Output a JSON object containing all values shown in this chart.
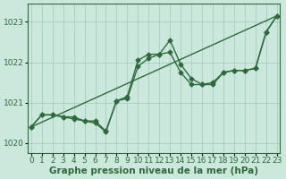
{
  "xlabel": "Graphe pression niveau de la mer (hPa)",
  "ylabel": "",
  "background_color": "#cce8dc",
  "plot_bg_color": "#cce8dc",
  "grid_color": "#99ccbb",
  "line_color": "#2d6b3c",
  "x_ticks": [
    0,
    1,
    2,
    3,
    4,
    5,
    6,
    7,
    8,
    9,
    10,
    11,
    12,
    13,
    14,
    15,
    16,
    17,
    18,
    19,
    20,
    21,
    22,
    23
  ],
  "y_ticks": [
    1020,
    1021,
    1022,
    1023
  ],
  "ylim": [
    1019.75,
    1023.45
  ],
  "xlim": [
    -0.3,
    23.3
  ],
  "line1_x": [
    0,
    23
  ],
  "line1_y": [
    1020.4,
    1023.15
  ],
  "line2": [
    1020.4,
    1020.7,
    1020.7,
    1020.65,
    1020.65,
    1020.55,
    1020.55,
    1020.3,
    1021.05,
    1021.15,
    1022.05,
    1022.2,
    1022.2,
    1022.55,
    1021.95,
    1021.6,
    1021.45,
    1021.45,
    1021.75,
    1021.8,
    1021.8,
    1021.85,
    1022.75,
    1023.15
  ],
  "line3": [
    1020.4,
    1020.7,
    1020.7,
    1020.65,
    1020.6,
    1020.55,
    1020.5,
    1020.28,
    1021.05,
    1021.1,
    1021.9,
    1022.1,
    1022.2,
    1022.25,
    1021.75,
    1021.45,
    1021.45,
    1021.5,
    1021.75,
    1021.8,
    1021.8,
    1021.85,
    1022.75,
    1023.15
  ],
  "marker": "D",
  "marker_size": 2.5,
  "line_width": 1.0,
  "tick_fontsize": 6.5,
  "xlabel_fontsize": 7.5
}
